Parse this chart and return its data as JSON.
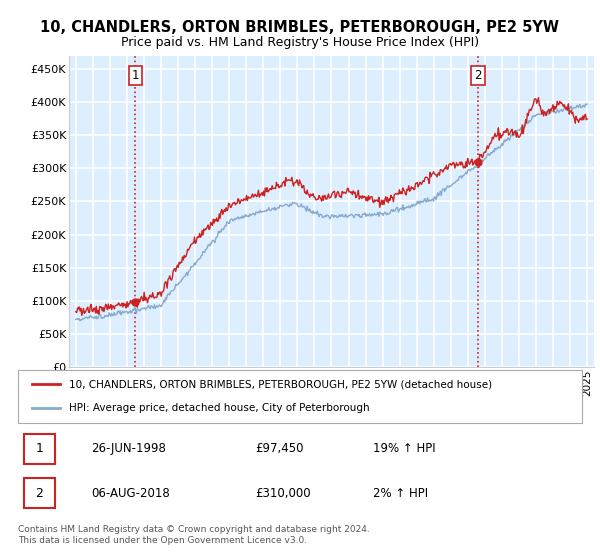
{
  "title": "10, CHANDLERS, ORTON BRIMBLES, PETERBOROUGH, PE2 5YW",
  "subtitle": "Price paid vs. HM Land Registry's House Price Index (HPI)",
  "ylabel_ticks": [
    "£0",
    "£50K",
    "£100K",
    "£150K",
    "£200K",
    "£250K",
    "£300K",
    "£350K",
    "£400K",
    "£450K"
  ],
  "ytick_values": [
    0,
    50000,
    100000,
    150000,
    200000,
    250000,
    300000,
    350000,
    400000,
    450000
  ],
  "ylim": [
    0,
    470000
  ],
  "xlim_start": 1994.6,
  "xlim_end": 2025.4,
  "bg_color": "#ddeeff",
  "grid_color": "#ffffff",
  "red_line_color": "#cc2222",
  "blue_line_color": "#88aacc",
  "marker1_x": 1998.49,
  "marker1_y": 97450,
  "marker2_x": 2018.59,
  "marker2_y": 310000,
  "vline_color": "#cc2222",
  "legend_entries": [
    "10, CHANDLERS, ORTON BRIMBLES, PETERBOROUGH, PE2 5YW (detached house)",
    "HPI: Average price, detached house, City of Peterborough"
  ],
  "annotation1_date": "26-JUN-1998",
  "annotation1_price": "£97,450",
  "annotation1_hpi": "19% ↑ HPI",
  "annotation2_date": "06-AUG-2018",
  "annotation2_price": "£310,000",
  "annotation2_hpi": "2% ↑ HPI",
  "footer": "Contains HM Land Registry data © Crown copyright and database right 2024.\nThis data is licensed under the Open Government Licence v3.0."
}
